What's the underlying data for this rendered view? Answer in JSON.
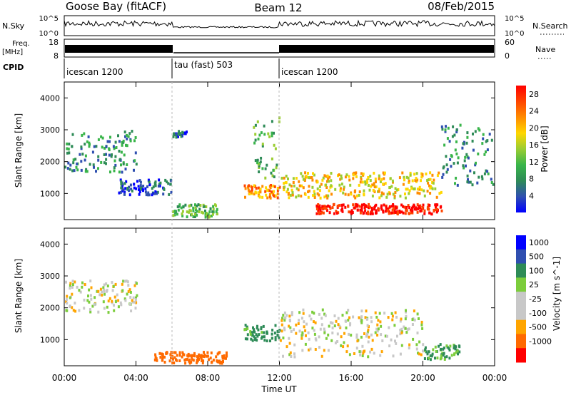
{
  "header": {
    "station": "Goose Bay (fitACF)",
    "beam": "Beam 12",
    "date": "08/Feb/2015"
  },
  "strips": {
    "nsky_label": "N.Sky",
    "nsky_ticks": [
      "10^5",
      "10^0"
    ],
    "nsearch_label": "N.Search",
    "nsearch_ticks": [
      "10^5",
      "10^0"
    ],
    "freq_label_1": "Freq.",
    "freq_label_2": "[MHz]",
    "freq_ticks": [
      "18",
      "8"
    ],
    "nave_label": "Nave",
    "nave_ticks": [
      "60",
      "0"
    ],
    "cpid_label": "CPID",
    "cpid_segments": [
      "icescan 1200",
      "tau (fast) 503",
      "icescan 1200"
    ]
  },
  "colors": {
    "power": [
      "#0000ff",
      "#2f4fb0",
      "#2e8b57",
      "#39b54a",
      "#9acd32",
      "#ffd700",
      "#ff8c00",
      "#ff4500",
      "#ff0000"
    ],
    "velocity": [
      "#ff0000",
      "#ff6a00",
      "#ffa500",
      "#c8c8c8",
      "#c8c8c8",
      "#7ccd3c",
      "#2e8b57",
      "#2f4fb0",
      "#0000ff"
    ],
    "ground_scatter": "#c8c8c8"
  },
  "chart_data": [
    {
      "type": "heatmap",
      "panel": "power",
      "ylabel": "Slant Range [km]",
      "ytick_labels": [
        "1000",
        "2000",
        "3000",
        "4000"
      ],
      "xlim": [
        "00:00",
        "24:00"
      ],
      "ylim": [
        180,
        4500
      ],
      "colorbar_label": "Power [dB]",
      "colorbar_ticks": [
        "4",
        "8",
        "12",
        "16",
        "20",
        "24",
        "28"
      ],
      "colorbar_range": [
        0,
        30
      ],
      "scatter_regions": [
        {
          "t0": 0.0,
          "t1": 4.0,
          "r0": 1700,
          "r1": 3000,
          "level": 2
        },
        {
          "t0": 3.0,
          "t1": 6.0,
          "r0": 1000,
          "r1": 1500,
          "level": 1
        },
        {
          "t0": 6.0,
          "t1": 6.8,
          "r0": 2800,
          "r1": 3000,
          "level": 1
        },
        {
          "t0": 6.0,
          "t1": 8.5,
          "r0": 300,
          "r1": 700,
          "level": 3
        },
        {
          "t0": 10.0,
          "t1": 12.0,
          "r0": 900,
          "r1": 1300,
          "level": 6
        },
        {
          "t0": 10.5,
          "t1": 12.0,
          "r0": 1500,
          "r1": 3500,
          "level": 3
        },
        {
          "t0": 12.0,
          "t1": 21.0,
          "r0": 900,
          "r1": 1700,
          "level": 5
        },
        {
          "t0": 14.0,
          "t1": 21.0,
          "r0": 400,
          "r1": 700,
          "level": 8
        },
        {
          "t0": 21.0,
          "t1": 24.0,
          "r0": 1300,
          "r1": 3200,
          "level": 2
        }
      ]
    },
    {
      "type": "heatmap",
      "panel": "velocity",
      "ylabel": "Slant Range [km]",
      "ytick_labels": [
        "1000",
        "2000",
        "3000",
        "4000"
      ],
      "xlabel": "Time UT",
      "xtick_labels": [
        "00:00",
        "04:00",
        "08:00",
        "12:00",
        "16:00",
        "20:00",
        "00:00"
      ],
      "xlim": [
        "00:00",
        "24:00"
      ],
      "ylim": [
        180,
        4500
      ],
      "colorbar_label": "Velocity [m s^-1]",
      "colorbar_ticks": [
        "1000",
        "500",
        "100",
        "25",
        "-25",
        "-100",
        "-500",
        "-1000"
      ],
      "scatter_regions": [
        {
          "t0": 0.0,
          "t1": 4.0,
          "r0": 1900,
          "r1": 2900,
          "v": 0
        },
        {
          "t0": 5.0,
          "t1": 9.0,
          "r0": 300,
          "r1": 650,
          "v": -400
        },
        {
          "t0": 10.0,
          "t1": 12.0,
          "r0": 1000,
          "r1": 1500,
          "v": 150
        },
        {
          "t0": 12.0,
          "t1": 20.0,
          "r0": 500,
          "r1": 2000,
          "v": 0
        },
        {
          "t0": 20.0,
          "t1": 22.0,
          "r0": 400,
          "r1": 900,
          "v": 120
        }
      ]
    }
  ]
}
